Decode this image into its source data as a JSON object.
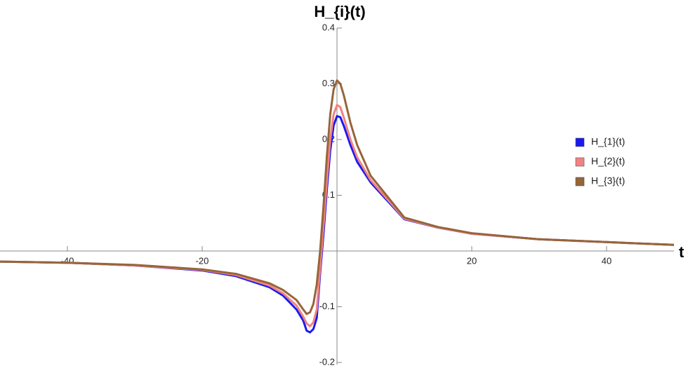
{
  "chart_data": {
    "type": "line",
    "x_label": "t",
    "y_label": "H_{i}(t)",
    "x": [
      -50,
      -40,
      -30,
      -20,
      -15,
      -10,
      -8,
      -6,
      -5,
      -4.5,
      -4,
      -3.5,
      -3,
      -2.5,
      -2,
      -1.5,
      -1,
      -0.5,
      0,
      0.5,
      1,
      2,
      3,
      5,
      10,
      15,
      20,
      30,
      40,
      50
    ],
    "series": [
      {
        "name": "H_{1}(t)",
        "color": "#1a1aee",
        "values": [
          -0.019,
          -0.021,
          -0.026,
          -0.035,
          -0.045,
          -0.065,
          -0.08,
          -0.105,
          -0.125,
          -0.143,
          -0.146,
          -0.14,
          -0.12,
          -0.04,
          0.03,
          0.11,
          0.18,
          0.225,
          0.242,
          0.24,
          0.225,
          0.19,
          0.16,
          0.123,
          0.057,
          0.042,
          0.031,
          0.021,
          0.016,
          0.011
        ]
      },
      {
        "name": "H_{2}(t)",
        "color": "#f28282",
        "values": [
          -0.019,
          -0.021,
          -0.026,
          -0.034,
          -0.043,
          -0.062,
          -0.076,
          -0.098,
          -0.118,
          -0.13,
          -0.135,
          -0.128,
          -0.105,
          -0.03,
          0.045,
          0.125,
          0.2,
          0.245,
          0.262,
          0.258,
          0.24,
          0.2,
          0.168,
          0.127,
          0.058,
          0.042,
          0.031,
          0.021,
          0.016,
          0.011
        ]
      },
      {
        "name": "H_{3}(t)",
        "color": "#966539",
        "values": [
          -0.019,
          -0.021,
          -0.025,
          -0.033,
          -0.041,
          -0.058,
          -0.07,
          -0.088,
          -0.105,
          -0.113,
          -0.11,
          -0.095,
          -0.06,
          0.0,
          0.08,
          0.17,
          0.245,
          0.29,
          0.306,
          0.3,
          0.28,
          0.23,
          0.19,
          0.135,
          0.06,
          0.043,
          0.032,
          0.021,
          0.016,
          0.011
        ]
      }
    ],
    "xlim": [
      -50,
      50
    ],
    "ylim": [
      -0.2,
      0.4
    ],
    "xticks": [
      -40,
      -20,
      20,
      40
    ],
    "yticks": [
      -0.2,
      -0.1,
      0.1,
      0.2,
      0.3,
      0.4
    ],
    "legend": "right"
  }
}
